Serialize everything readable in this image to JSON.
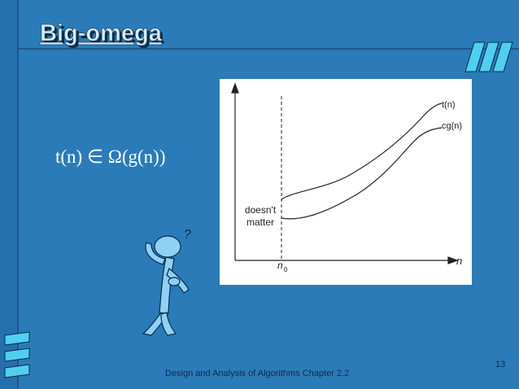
{
  "slide": {
    "title": "Big-omega",
    "formula": "t(n) ∈ Ω(g(n))",
    "graph": {
      "upper_curve_label": "t(n)",
      "lower_curve_label": "cg(n)",
      "left_note": [
        "doesn't",
        "matter"
      ],
      "x_axis_label": "n",
      "threshold_label": {
        "base": "n",
        "sub": "0"
      }
    },
    "footer": "Design and Analysis of Algorithms Chapter 2.2",
    "page_number": "13"
  }
}
